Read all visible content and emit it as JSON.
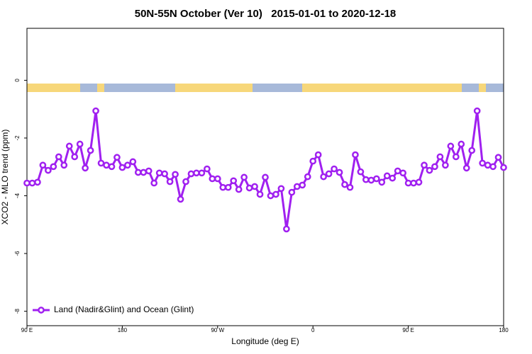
{
  "chart_data": {
    "type": "line",
    "title": "50N-55N October (Ver 10)   2015-01-01 to 2020-12-18",
    "xlabel": "Longitude (deg E)",
    "ylabel": "XCO2 - MLO trend (ppm)",
    "xlim": [
      90,
      540
    ],
    "ylim": [
      -8.5,
      1.8
    ],
    "xticks": [
      {
        "value": 90,
        "label": "90 E"
      },
      180,
      {
        "value": 270,
        "label": "90 W"
      },
      {
        "value": 360,
        "label": "0"
      },
      {
        "value": 450,
        "label": "90 E"
      },
      {
        "value": 540,
        "label": "180"
      }
    ],
    "yticks": [
      0,
      -2,
      -4,
      -6,
      -8
    ],
    "legend": "bottom-left",
    "x": [
      90,
      95,
      100,
      105,
      110,
      115,
      120,
      125,
      130,
      135,
      140,
      145,
      150,
      155,
      160,
      165,
      170,
      175,
      180,
      185,
      190,
      195,
      200,
      205,
      210,
      215,
      220,
      225,
      230,
      235,
      240,
      245,
      250,
      255,
      260,
      265,
      270,
      275,
      280,
      285,
      290,
      295,
      300,
      305,
      310,
      315,
      320,
      325,
      330,
      335,
      340,
      345,
      350,
      355,
      360,
      365,
      370,
      375,
      380,
      385,
      390,
      395,
      400,
      405,
      410,
      415,
      420,
      425,
      430,
      435,
      440,
      445,
      450,
      455,
      460,
      465,
      470,
      475,
      480,
      485,
      490,
      495,
      500,
      505,
      510,
      515,
      520,
      525,
      530,
      535,
      540
    ],
    "series": [
      {
        "name": "Land (Nadir&Glint) and Ocean (Glint)",
        "color": "#a020f0",
        "values": [
          -3.56,
          -3.56,
          -3.53,
          -2.94,
          -3.12,
          -2.99,
          -2.65,
          -2.94,
          -2.28,
          -2.65,
          -2.21,
          -3.04,
          -2.43,
          -1.06,
          -2.87,
          -2.94,
          -2.99,
          -2.67,
          -3.02,
          -2.94,
          -2.82,
          -3.19,
          -3.19,
          -3.14,
          -3.56,
          -3.21,
          -3.24,
          -3.51,
          -3.26,
          -4.12,
          -3.51,
          -3.24,
          -3.21,
          -3.21,
          -3.07,
          -3.41,
          -3.41,
          -3.71,
          -3.71,
          -3.48,
          -3.78,
          -3.36,
          -3.73,
          -3.68,
          -3.95,
          -3.36,
          -4,
          -3.95,
          -3.75,
          -5.15,
          -3.88,
          -3.68,
          -3.63,
          -3.34,
          -2.8,
          -2.58,
          -3.34,
          -3.24,
          -3.07,
          -3.19,
          -3.61,
          -3.71,
          -2.58,
          -3.17,
          -3.44,
          -3.46,
          -3.41,
          -3.53,
          -3.31,
          -3.39,
          -3.14,
          -3.21,
          -3.56,
          -3.56,
          -3.53,
          -2.94,
          -3.12,
          -2.99,
          -2.65,
          -2.94,
          -2.28,
          -2.65,
          -2.21,
          -3.04,
          -2.43,
          -1.06,
          -2.87,
          -2.94,
          -2.99,
          -2.67,
          -3.02
        ]
      }
    ]
  }
}
